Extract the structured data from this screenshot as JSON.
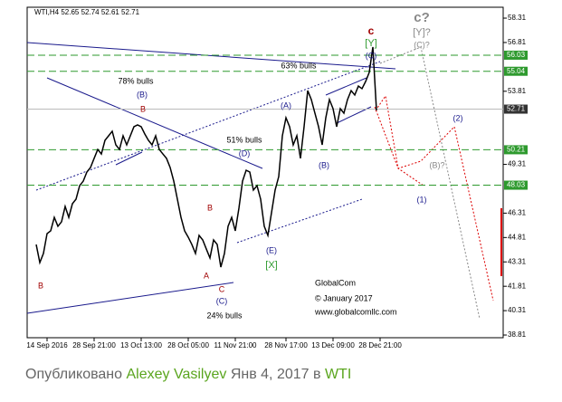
{
  "chart_data": {
    "type": "line",
    "title": "WTI,H4 52.65 52.74 52.61 52.71",
    "x": [
      2,
      3,
      4,
      5,
      6,
      7,
      8,
      9,
      10,
      11,
      12,
      13,
      14,
      15,
      16,
      17,
      18,
      19,
      20,
      21,
      22,
      23,
      24,
      25,
      26,
      27,
      28,
      29,
      30,
      31,
      32,
      33,
      34,
      35,
      36,
      37,
      38,
      39,
      40,
      41,
      42,
      43,
      44,
      45,
      46,
      47,
      48,
      49,
      50,
      51,
      52,
      53,
      54,
      55,
      56,
      57,
      58,
      59,
      60,
      61,
      62,
      63,
      64,
      65,
      66,
      67,
      68,
      69,
      70,
      71,
      72,
      73,
      74,
      75,
      76,
      77,
      78,
      79,
      80,
      81,
      82,
      83,
      84,
      85,
      86,
      87,
      88,
      89,
      90,
      91,
      92,
      93,
      94,
      95,
      96
    ],
    "series": [
      {
        "color": "#000000",
        "values": [
          44.38,
          43.27,
          43.83,
          45.05,
          45.22,
          46.05,
          45.5,
          45.78,
          46.72,
          46.05,
          46.89,
          47.17,
          48.0,
          48.28,
          48.84,
          49.12,
          49.68,
          50.23,
          49.95,
          50.79,
          51.07,
          51.35,
          50.51,
          50.23,
          51.07,
          50.51,
          51.07,
          51.63,
          51.74,
          51.63,
          51.18,
          50.79,
          50.51,
          51.07,
          50.23,
          49.95,
          49.68,
          49.12,
          48.28,
          47.17,
          46.05,
          45.22,
          44.83,
          44.38,
          43.83,
          44.94,
          44.66,
          44.1,
          43.55,
          44.66,
          44.38,
          42.99,
          43.83,
          45.5,
          46.05,
          45.22,
          46.61,
          48.28,
          48.95,
          48.84,
          47.73,
          48.0,
          47.17,
          45.5,
          44.94,
          46.33,
          47.73,
          48.56,
          51.07,
          52.18,
          51.63,
          50.51,
          51.07,
          49.68,
          51.63,
          53.85,
          53.3,
          52.46,
          51.63,
          50.51,
          52.18,
          53.3,
          52.74,
          51.63,
          52.74,
          52.46,
          53.3,
          53.85,
          53.58,
          54.13,
          53.97,
          54.41,
          54.97,
          56.53,
          52.63
        ]
      }
    ],
    "xlim": [
      0,
      131
    ],
    "xticks": [
      {
        "value": 5,
        "label": "14 Sep 2016"
      },
      {
        "value": 18,
        "label": "28 Sep 21:00"
      },
      {
        "value": 31,
        "label": "13 Oct 13:00"
      },
      {
        "value": 44,
        "label": "28 Oct 05:00"
      },
      {
        "value": 57,
        "label": "11 Nov 21:00"
      },
      {
        "value": 71,
        "label": "28 Nov 17:00"
      },
      {
        "value": 84,
        "label": "13 Dec 09:00"
      },
      {
        "value": 97,
        "label": "28 Dec 21:00"
      }
    ],
    "ylim": [
      38.7,
      58.98
    ],
    "yticks": [
      58.31,
      56.81,
      53.81,
      49.31,
      46.31,
      44.81,
      43.31,
      41.81,
      40.31,
      38.81
    ],
    "levels": [
      56.03,
      55.04,
      50.21,
      48.03
    ],
    "level_color": "#2e9a2e",
    "last_price": 52.71,
    "annotations": [
      "c",
      "[Y]",
      "(C)",
      "63% bulls",
      "78% bulls",
      "(B)",
      "B",
      "51% bulls",
      "(D)",
      "(A)",
      "(B)",
      "(B)?",
      "(1)",
      "(2)",
      "c?",
      "[Y]?",
      "(C)?",
      "A",
      "C",
      "(C)",
      "24% bulls",
      "(E)",
      "[X]",
      "B",
      "B",
      "GlobalCom",
      "© January 2017",
      "www.globalcomllc.com"
    ]
  },
  "caption": {
    "prefix": "Опубликовано",
    "author": "Alexey Vasilyev",
    "date": "Янв 4, 2017 в",
    "symbol": "WTI"
  }
}
